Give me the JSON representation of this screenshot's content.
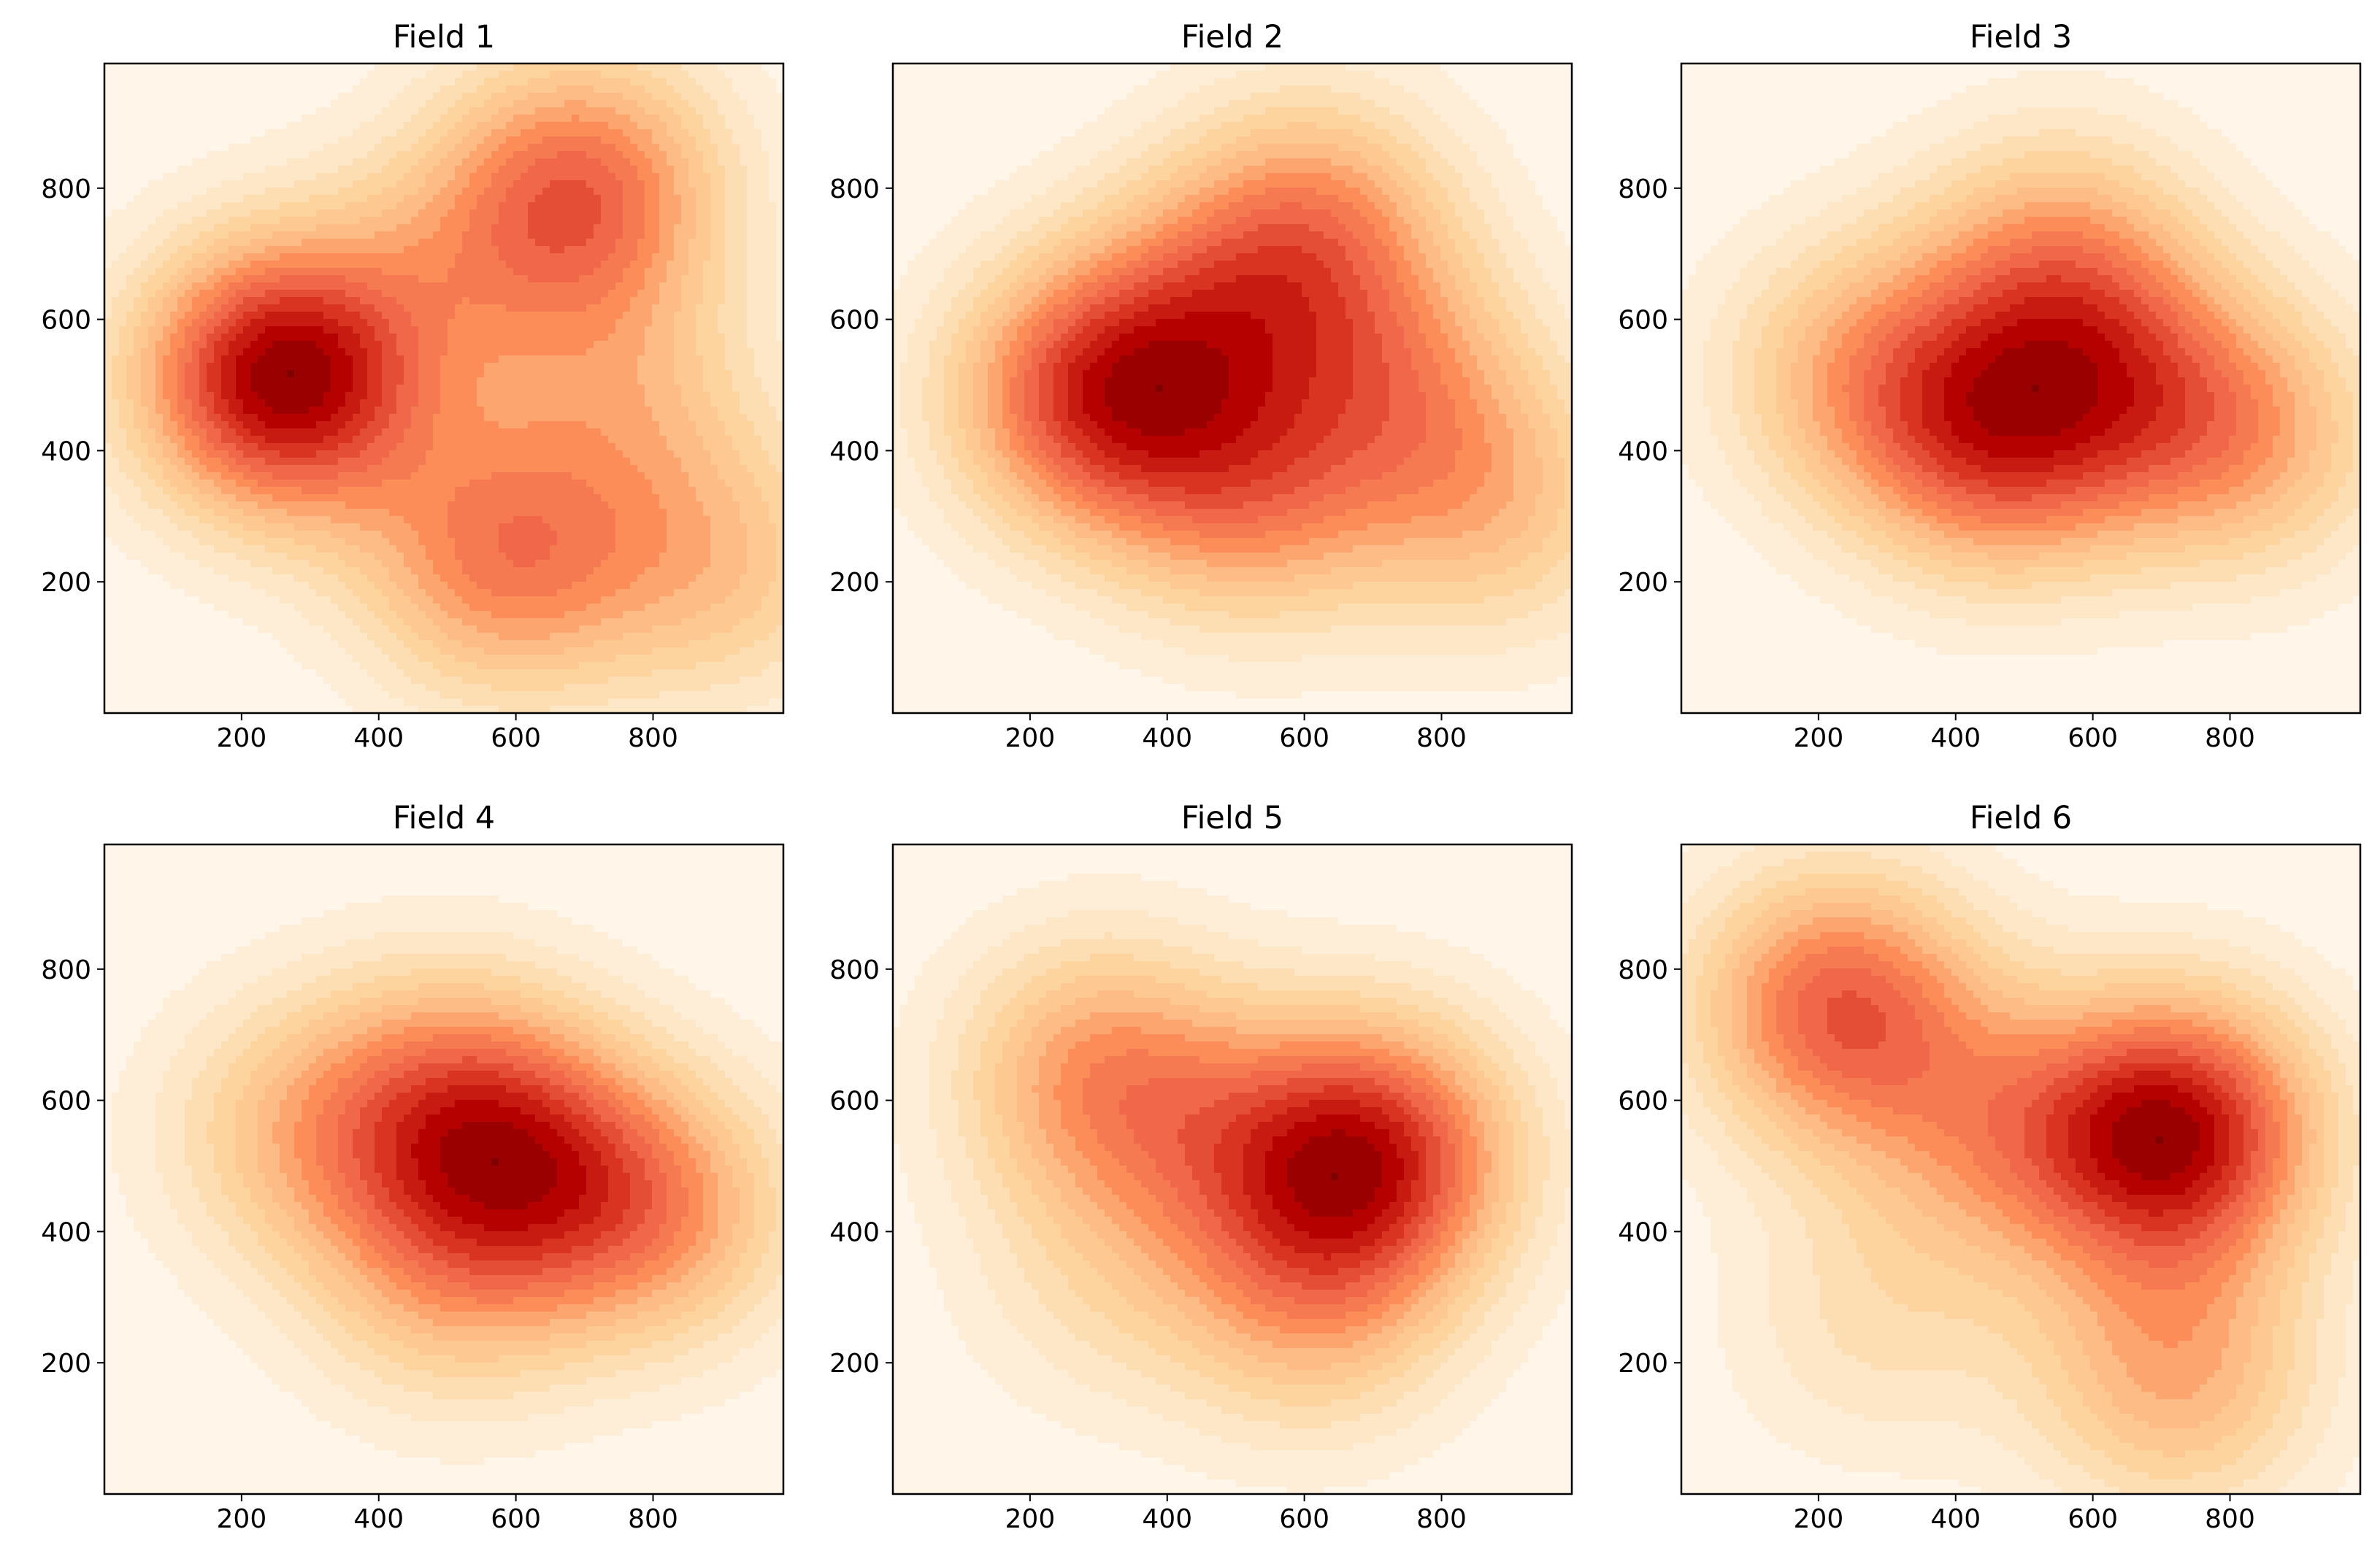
{
  "chart_data": [
    {
      "type": "heatmap",
      "subtype": "filled-contour-density",
      "title": "Field 1",
      "xlabel": "",
      "ylabel": "",
      "xlim": [
        0,
        990
      ],
      "ylim": [
        0,
        990
      ],
      "xticks": [
        200,
        400,
        600,
        800
      ],
      "yticks": [
        200,
        400,
        600,
        800
      ],
      "colormap": "OrRd",
      "peaks": [
        {
          "x": 260,
          "y": 510,
          "value": 0.9
        },
        {
          "x": 700,
          "y": 800,
          "value": 0.55
        },
        {
          "x": 580,
          "y": 230,
          "value": 0.5
        },
        {
          "x": 760,
          "y": 480,
          "value": 0.25
        },
        {
          "x": 900,
          "y": 220,
          "value": 0.3
        },
        {
          "x": 520,
          "y": 690,
          "value": 0.2
        }
      ]
    },
    {
      "type": "heatmap",
      "subtype": "filled-contour-density",
      "title": "Field 2",
      "xlabel": "",
      "ylabel": "",
      "xlim": [
        0,
        990
      ],
      "ylim": [
        0,
        990
      ],
      "xticks": [
        200,
        400,
        600,
        800
      ],
      "yticks": [
        200,
        400,
        600,
        800
      ],
      "colormap": "OrRd",
      "peaks": [
        {
          "x": 290,
          "y": 480,
          "value": 0.85
        },
        {
          "x": 520,
          "y": 330,
          "value": 0.55
        },
        {
          "x": 610,
          "y": 740,
          "value": 0.6
        },
        {
          "x": 740,
          "y": 500,
          "value": 0.45
        },
        {
          "x": 880,
          "y": 310,
          "value": 0.4
        },
        {
          "x": 450,
          "y": 600,
          "value": 0.4
        }
      ]
    },
    {
      "type": "heatmap",
      "subtype": "filled-contour-density",
      "title": "Field 3",
      "xlabel": "",
      "ylabel": "",
      "xlim": [
        0,
        990
      ],
      "ylim": [
        0,
        990
      ],
      "xticks": [
        200,
        400,
        600,
        800
      ],
      "yticks": [
        200,
        400,
        600,
        800
      ],
      "colormap": "OrRd",
      "peaks": [
        {
          "x": 460,
          "y": 410,
          "value": 0.8
        },
        {
          "x": 550,
          "y": 680,
          "value": 0.6
        },
        {
          "x": 820,
          "y": 420,
          "value": 0.55
        },
        {
          "x": 260,
          "y": 520,
          "value": 0.5
        },
        {
          "x": 650,
          "y": 500,
          "value": 0.4
        }
      ]
    },
    {
      "type": "heatmap",
      "subtype": "filled-contour-density",
      "title": "Field 4",
      "xlabel": "",
      "ylabel": "",
      "xlim": [
        0,
        990
      ],
      "ylim": [
        0,
        990
      ],
      "xticks": [
        200,
        400,
        600,
        800
      ],
      "yticks": [
        200,
        400,
        600,
        800
      ],
      "colormap": "OrRd",
      "peaks": [
        {
          "x": 590,
          "y": 530,
          "value": 0.95
        },
        {
          "x": 800,
          "y": 430,
          "value": 0.85
        },
        {
          "x": 500,
          "y": 330,
          "value": 0.6
        },
        {
          "x": 280,
          "y": 550,
          "value": 0.55
        },
        {
          "x": 480,
          "y": 620,
          "value": 0.5
        }
      ]
    },
    {
      "type": "heatmap",
      "subtype": "filled-contour-density",
      "title": "Field 5",
      "xlabel": "",
      "ylabel": "",
      "xlim": [
        0,
        990
      ],
      "ylim": [
        0,
        990
      ],
      "xticks": [
        200,
        400,
        600,
        800
      ],
      "yticks": [
        200,
        400,
        600,
        800
      ],
      "colormap": "OrRd",
      "peaks": [
        {
          "x": 700,
          "y": 520,
          "value": 0.95
        },
        {
          "x": 300,
          "y": 640,
          "value": 0.6
        },
        {
          "x": 610,
          "y": 290,
          "value": 0.45
        },
        {
          "x": 500,
          "y": 520,
          "value": 0.3
        },
        {
          "x": 300,
          "y": 320,
          "value": 0.2
        }
      ]
    },
    {
      "type": "heatmap",
      "subtype": "filled-contour-density",
      "title": "Field 6",
      "xlabel": "",
      "ylabel": "",
      "xlim": [
        0,
        990
      ],
      "ylim": [
        0,
        990
      ],
      "xticks": [
        200,
        400,
        600,
        800
      ],
      "yticks": [
        200,
        400,
        600,
        800
      ],
      "colormap": "OrRd",
      "peaks": [
        {
          "x": 720,
          "y": 550,
          "value": 0.95
        },
        {
          "x": 230,
          "y": 740,
          "value": 0.7
        },
        {
          "x": 720,
          "y": 180,
          "value": 0.45
        },
        {
          "x": 460,
          "y": 540,
          "value": 0.35
        },
        {
          "x": 280,
          "y": 260,
          "value": 0.2
        }
      ]
    }
  ]
}
